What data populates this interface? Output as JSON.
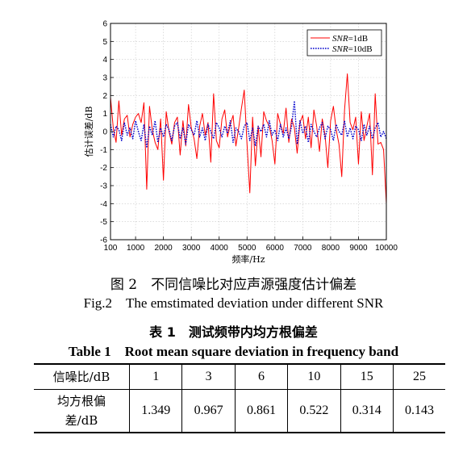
{
  "chart_data": {
    "type": "line",
    "xlabel": "频率/Hz",
    "ylabel": "估计误差/dB",
    "xlim": [
      100,
      10000
    ],
    "ylim": [
      -6,
      6
    ],
    "xticks": [
      100,
      1000,
      2000,
      3000,
      4000,
      5000,
      6000,
      7000,
      8000,
      9000,
      10000
    ],
    "yticks": [
      -6,
      -5,
      -4,
      -3,
      -2,
      -1,
      0,
      1,
      2,
      3,
      4,
      5,
      6
    ],
    "grid": true,
    "legend_position": "top-right",
    "series": [
      {
        "name": "SNR=1dB",
        "color": "#ff0000",
        "style": "solid",
        "x": [
          100,
          200,
          300,
          400,
          500,
          600,
          700,
          800,
          900,
          1000,
          1100,
          1200,
          1300,
          1400,
          1500,
          1600,
          1700,
          1800,
          1900,
          2000,
          2100,
          2200,
          2300,
          2400,
          2500,
          2600,
          2700,
          2800,
          2900,
          3000,
          3100,
          3200,
          3300,
          3400,
          3500,
          3600,
          3700,
          3800,
          3900,
          4000,
          4100,
          4200,
          4300,
          4400,
          4500,
          4600,
          4700,
          4800,
          4900,
          5000,
          5100,
          5200,
          5300,
          5400,
          5500,
          5600,
          5700,
          5800,
          5900,
          6000,
          6100,
          6200,
          6300,
          6400,
          6500,
          6600,
          6700,
          6800,
          6900,
          7000,
          7100,
          7200,
          7300,
          7400,
          7500,
          7600,
          7700,
          7800,
          7900,
          8000,
          8100,
          8200,
          8300,
          8400,
          8500,
          8600,
          8700,
          8800,
          8900,
          9000,
          9100,
          9200,
          9300,
          9400,
          9500,
          9600,
          9700,
          9800,
          9900,
          10000
        ],
        "y": [
          1.9,
          0.2,
          -0.6,
          1.7,
          -0.2,
          0.7,
          0.9,
          -0.3,
          0.4,
          0.8,
          1.0,
          0.5,
          1.6,
          -3.2,
          1.4,
          0.1,
          -0.6,
          -1.0,
          0.7,
          -2.7,
          1.1,
          0.0,
          -0.7,
          0.5,
          0.8,
          -1.3,
          0.6,
          -0.8,
          1.5,
          0.2,
          -0.4,
          -1.5,
          0.3,
          1.0,
          -0.2,
          0.5,
          -1.7,
          2.1,
          -0.5,
          -0.9,
          0.7,
          1.2,
          -0.3,
          0.4,
          0.9,
          -0.8,
          0.2,
          1.3,
          2.3,
          -0.7,
          -3.4,
          0.8,
          -1.9,
          0.3,
          -1.4,
          1.1,
          0.6,
          0.3,
          -0.5,
          -1.8,
          1.0,
          0.4,
          -0.1,
          1.3,
          -0.6,
          0.7,
          0.2,
          -1.2,
          0.5,
          0.9,
          -0.4,
          0.8,
          -0.9,
          1.2,
          0.3,
          -1.1,
          0.7,
          -0.2,
          -2.0,
          0.6,
          1.4,
          0.1,
          -0.7,
          -2.5,
          1.2,
          3.2,
          0.5,
          0.1,
          0.8,
          -1.8,
          1.1,
          -0.5,
          0.3,
          1.0,
          -2.4,
          2.1,
          -0.7,
          -0.6,
          -1.0,
          -4.0
        ]
      },
      {
        "name": "SNR=10dB",
        "color": "#0000cc",
        "style": "dotted",
        "x": [
          100,
          200,
          300,
          400,
          500,
          600,
          700,
          800,
          900,
          1000,
          1100,
          1200,
          1300,
          1400,
          1500,
          1600,
          1700,
          1800,
          1900,
          2000,
          2100,
          2200,
          2300,
          2400,
          2500,
          2600,
          2700,
          2800,
          2900,
          3000,
          3100,
          3200,
          3300,
          3400,
          3500,
          3600,
          3700,
          3800,
          3900,
          4000,
          4100,
          4200,
          4300,
          4400,
          4500,
          4600,
          4700,
          4800,
          4900,
          5000,
          5100,
          5200,
          5300,
          5400,
          5500,
          5600,
          5700,
          5800,
          5900,
          6000,
          6100,
          6200,
          6300,
          6400,
          6500,
          6600,
          6700,
          6800,
          6900,
          7000,
          7100,
          7200,
          7300,
          7400,
          7500,
          7600,
          7700,
          7800,
          7900,
          8000,
          8100,
          8200,
          8300,
          8400,
          8500,
          8600,
          8700,
          8800,
          8900,
          9000,
          9100,
          9200,
          9300,
          9400,
          9500,
          9600,
          9700,
          9800,
          9900,
          10000
        ],
        "y": [
          0.4,
          -0.3,
          0.3,
          0.1,
          -0.5,
          0.5,
          -0.2,
          0.2,
          -0.4,
          0.6,
          0.0,
          -0.5,
          0.4,
          -0.9,
          0.3,
          -0.2,
          0.6,
          -0.6,
          0.2,
          -0.3,
          0.4,
          0.1,
          -0.5,
          0.3,
          0.5,
          -0.4,
          0.2,
          -0.7,
          0.4,
          0.1,
          -0.2,
          0.6,
          -0.3,
          0.2,
          -0.5,
          0.4,
          0.0,
          -0.4,
          0.5,
          0.2,
          -0.3,
          0.3,
          -0.1,
          0.6,
          -0.6,
          0.2,
          0.0,
          -0.4,
          0.3,
          0.5,
          -0.5,
          0.2,
          -0.8,
          0.3,
          0.0,
          0.4,
          -0.3,
          0.6,
          -0.2,
          0.1,
          -0.5,
          0.4,
          -0.3,
          0.2,
          -0.4,
          0.3,
          1.7,
          -0.7,
          0.6,
          -0.1,
          0.3,
          -0.6,
          0.4,
          0.0,
          -0.3,
          0.2,
          0.5,
          -0.4,
          0.3,
          0.1,
          -0.5,
          0.4,
          0.0,
          -0.2,
          0.6,
          -0.3,
          0.2,
          -0.4,
          0.3,
          0.1,
          -0.5,
          0.4,
          -0.2,
          0.3,
          -0.4,
          0.2,
          0.5,
          -0.3,
          0.0,
          -0.4
        ]
      }
    ]
  },
  "figure": {
    "caption_zh": "图 2　不同信噪比对应声源强度估计偏差",
    "caption_en": "Fig.2　The emstimated deviation under different SNR"
  },
  "table": {
    "caption_zh": "表 1　测试频带内均方根偏差",
    "caption_en": "Table 1　Root mean square deviation in frequency band",
    "row_header_snr": "信噪比/dB",
    "row_header_rms_line1": "均方根偏",
    "row_header_rms_line2": "差/dB",
    "snr_values": [
      "1",
      "3",
      "6",
      "10",
      "15",
      "25"
    ],
    "rms_values": [
      "1.349",
      "0.967",
      "0.861",
      "0.522",
      "0.314",
      "0.143"
    ]
  }
}
